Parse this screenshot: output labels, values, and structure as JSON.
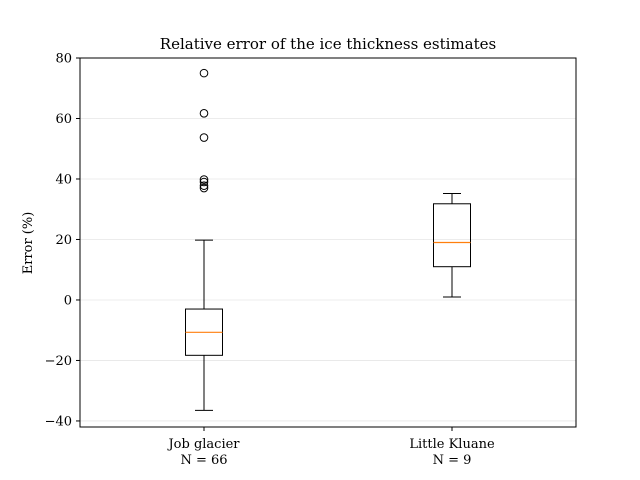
{
  "chart_data": {
    "type": "box",
    "title": "Relative error of the ice thickness estimates",
    "xlabel": "",
    "ylabel": "Error (%)",
    "ylim": [
      -42,
      80
    ],
    "yticks": [
      -40,
      -20,
      0,
      20,
      40,
      60,
      80
    ],
    "grid": "horizontal",
    "colors": {
      "median": "#ff7f0e",
      "box": "#000000",
      "grid": "#e6e6e6"
    },
    "boxes": [
      {
        "label": "Job glacier",
        "count_label": "N = 66",
        "whisker_low": -36.5,
        "q1": -18.3,
        "median": -10.7,
        "q3": -3.0,
        "whisker_high": 19.8,
        "outliers": [
          75.0,
          61.7,
          53.7,
          39.8,
          39.0,
          37.8,
          37.0
        ]
      },
      {
        "label": "Little Kluane",
        "count_label": "N = 9",
        "whisker_low": 1.0,
        "q1": 11.0,
        "median": 19.0,
        "q3": 31.8,
        "whisker_high": 35.2,
        "outliers": []
      }
    ]
  }
}
